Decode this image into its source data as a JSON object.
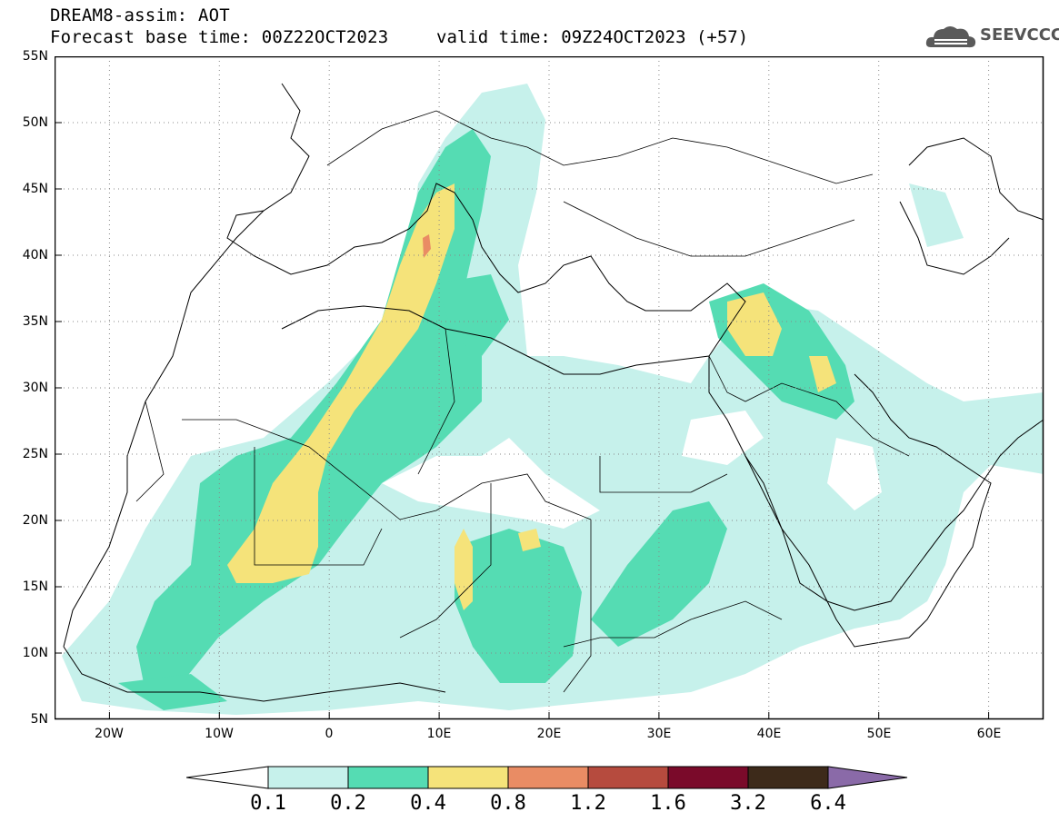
{
  "header": {
    "title_line1": "DREAM8-assim: AOT",
    "title_line2": "Forecast base time: 00Z22OCT2023",
    "valid_time": "valid time: 09Z24OCT2023 (+57)",
    "logo_text": "SEEVCCC"
  },
  "map": {
    "projection": "lat-lon",
    "lon_range": [
      -25,
      65
    ],
    "lat_range": [
      5,
      55
    ],
    "lat_labels": [
      "55N",
      "50N",
      "45N",
      "40N",
      "35N",
      "30N",
      "25N",
      "20N",
      "15N",
      "10N",
      "5N"
    ],
    "lon_labels": [
      "20W",
      "10W",
      "0",
      "10E",
      "20E",
      "30E",
      "40E",
      "50E",
      "60E"
    ],
    "grid": "dotted"
  },
  "colorbar": {
    "levels": [
      "0.1",
      "0.2",
      "0.4",
      "0.8",
      "1.2",
      "1.6",
      "3.2",
      "6.4"
    ],
    "colors": [
      "#ffffff",
      "#c6f1eb",
      "#55dcb3",
      "#f5e37a",
      "#e98c64",
      "#b64b3e",
      "#7a0a2a",
      "#3d2a1a",
      "#8a6aa8"
    ]
  }
}
